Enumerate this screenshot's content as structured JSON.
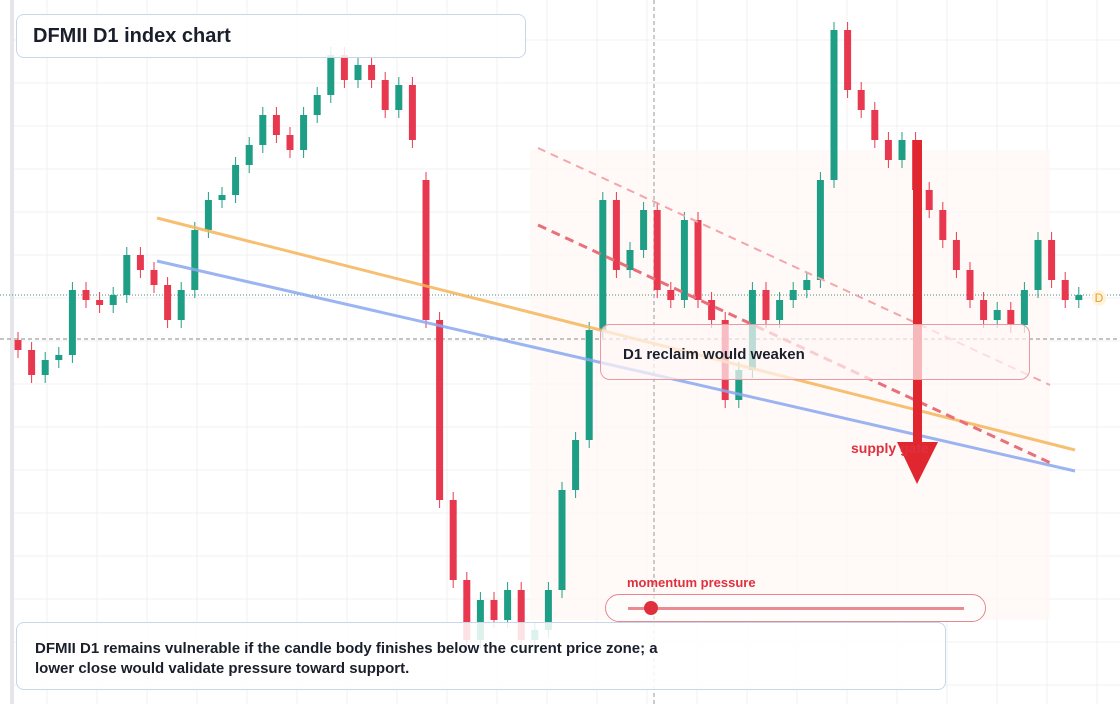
{
  "chart_data": {
    "type": "candlestick",
    "title": "DFMII D1 index chart",
    "callout": "D1 reclaim would weaken",
    "supply_label": "supply gate",
    "momentum_label": "momentum pressure",
    "marker_label": "D",
    "summary": "DFMII D1 remains vulnerable if the candle body finishes below the current price zone; a lower close would validate pressure toward support.",
    "up_color": "#1f9e86",
    "down_color": "#e8384f",
    "ylim": [
      0,
      704
    ],
    "open": [
      364,
      354,
      329,
      344,
      349,
      414,
      404,
      399,
      409,
      449,
      434,
      419,
      384,
      414,
      474,
      504,
      509,
      539,
      559,
      589,
      569,
      554,
      589,
      609,
      649,
      624,
      639,
      624,
      594,
      619,
      524,
      384,
      204,
      124,
      64,
      104,
      84,
      114,
      64,
      74,
      114,
      214,
      264,
      374,
      504,
      434,
      454,
      494,
      414,
      404,
      484,
      404,
      384,
      304,
      334,
      414,
      384,
      404,
      414,
      424,
      524,
      674,
      614,
      594,
      564,
      544,
      564,
      514,
      494,
      464,
      434,
      404,
      384,
      394,
      379,
      414,
      464,
      424,
      404
    ],
    "high": [
      372,
      362,
      352,
      357,
      422,
      422,
      412,
      417,
      457,
      457,
      442,
      427,
      422,
      482,
      512,
      517,
      547,
      567,
      597,
      597,
      577,
      597,
      617,
      657,
      657,
      647,
      647,
      632,
      627,
      627,
      532,
      392,
      212,
      132,
      112,
      112,
      122,
      122,
      82,
      122,
      222,
      272,
      382,
      512,
      512,
      462,
      502,
      502,
      422,
      492,
      492,
      412,
      392,
      342,
      422,
      422,
      412,
      422,
      432,
      532,
      682,
      682,
      622,
      602,
      572,
      572,
      572,
      522,
      502,
      472,
      442,
      412,
      402,
      402,
      422,
      472,
      472,
      432,
      417
    ],
    "low": [
      346,
      321,
      321,
      336,
      341,
      396,
      391,
      391,
      401,
      426,
      411,
      376,
      376,
      406,
      466,
      496,
      501,
      531,
      551,
      561,
      546,
      546,
      581,
      601,
      616,
      616,
      616,
      586,
      586,
      556,
      376,
      196,
      116,
      56,
      56,
      76,
      76,
      56,
      56,
      66,
      106,
      206,
      256,
      366,
      426,
      426,
      446,
      406,
      396,
      396,
      396,
      376,
      296,
      296,
      326,
      376,
      376,
      396,
      406,
      416,
      516,
      606,
      586,
      556,
      536,
      536,
      506,
      486,
      456,
      426,
      396,
      376,
      376,
      371,
      371,
      406,
      416,
      396,
      396
    ],
    "close": [
      354,
      329,
      344,
      349,
      414,
      404,
      399,
      409,
      449,
      434,
      419,
      384,
      414,
      474,
      504,
      509,
      539,
      559,
      589,
      569,
      554,
      589,
      609,
      649,
      624,
      639,
      624,
      594,
      619,
      564,
      384,
      204,
      124,
      64,
      104,
      84,
      114,
      64,
      74,
      114,
      214,
      264,
      374,
      504,
      434,
      454,
      494,
      414,
      404,
      484,
      404,
      384,
      304,
      334,
      414,
      384,
      404,
      414,
      424,
      524,
      674,
      614,
      594,
      564,
      544,
      564,
      514,
      494,
      464,
      434,
      404,
      384,
      394,
      379,
      414,
      464,
      424,
      404,
      409
    ]
  }
}
